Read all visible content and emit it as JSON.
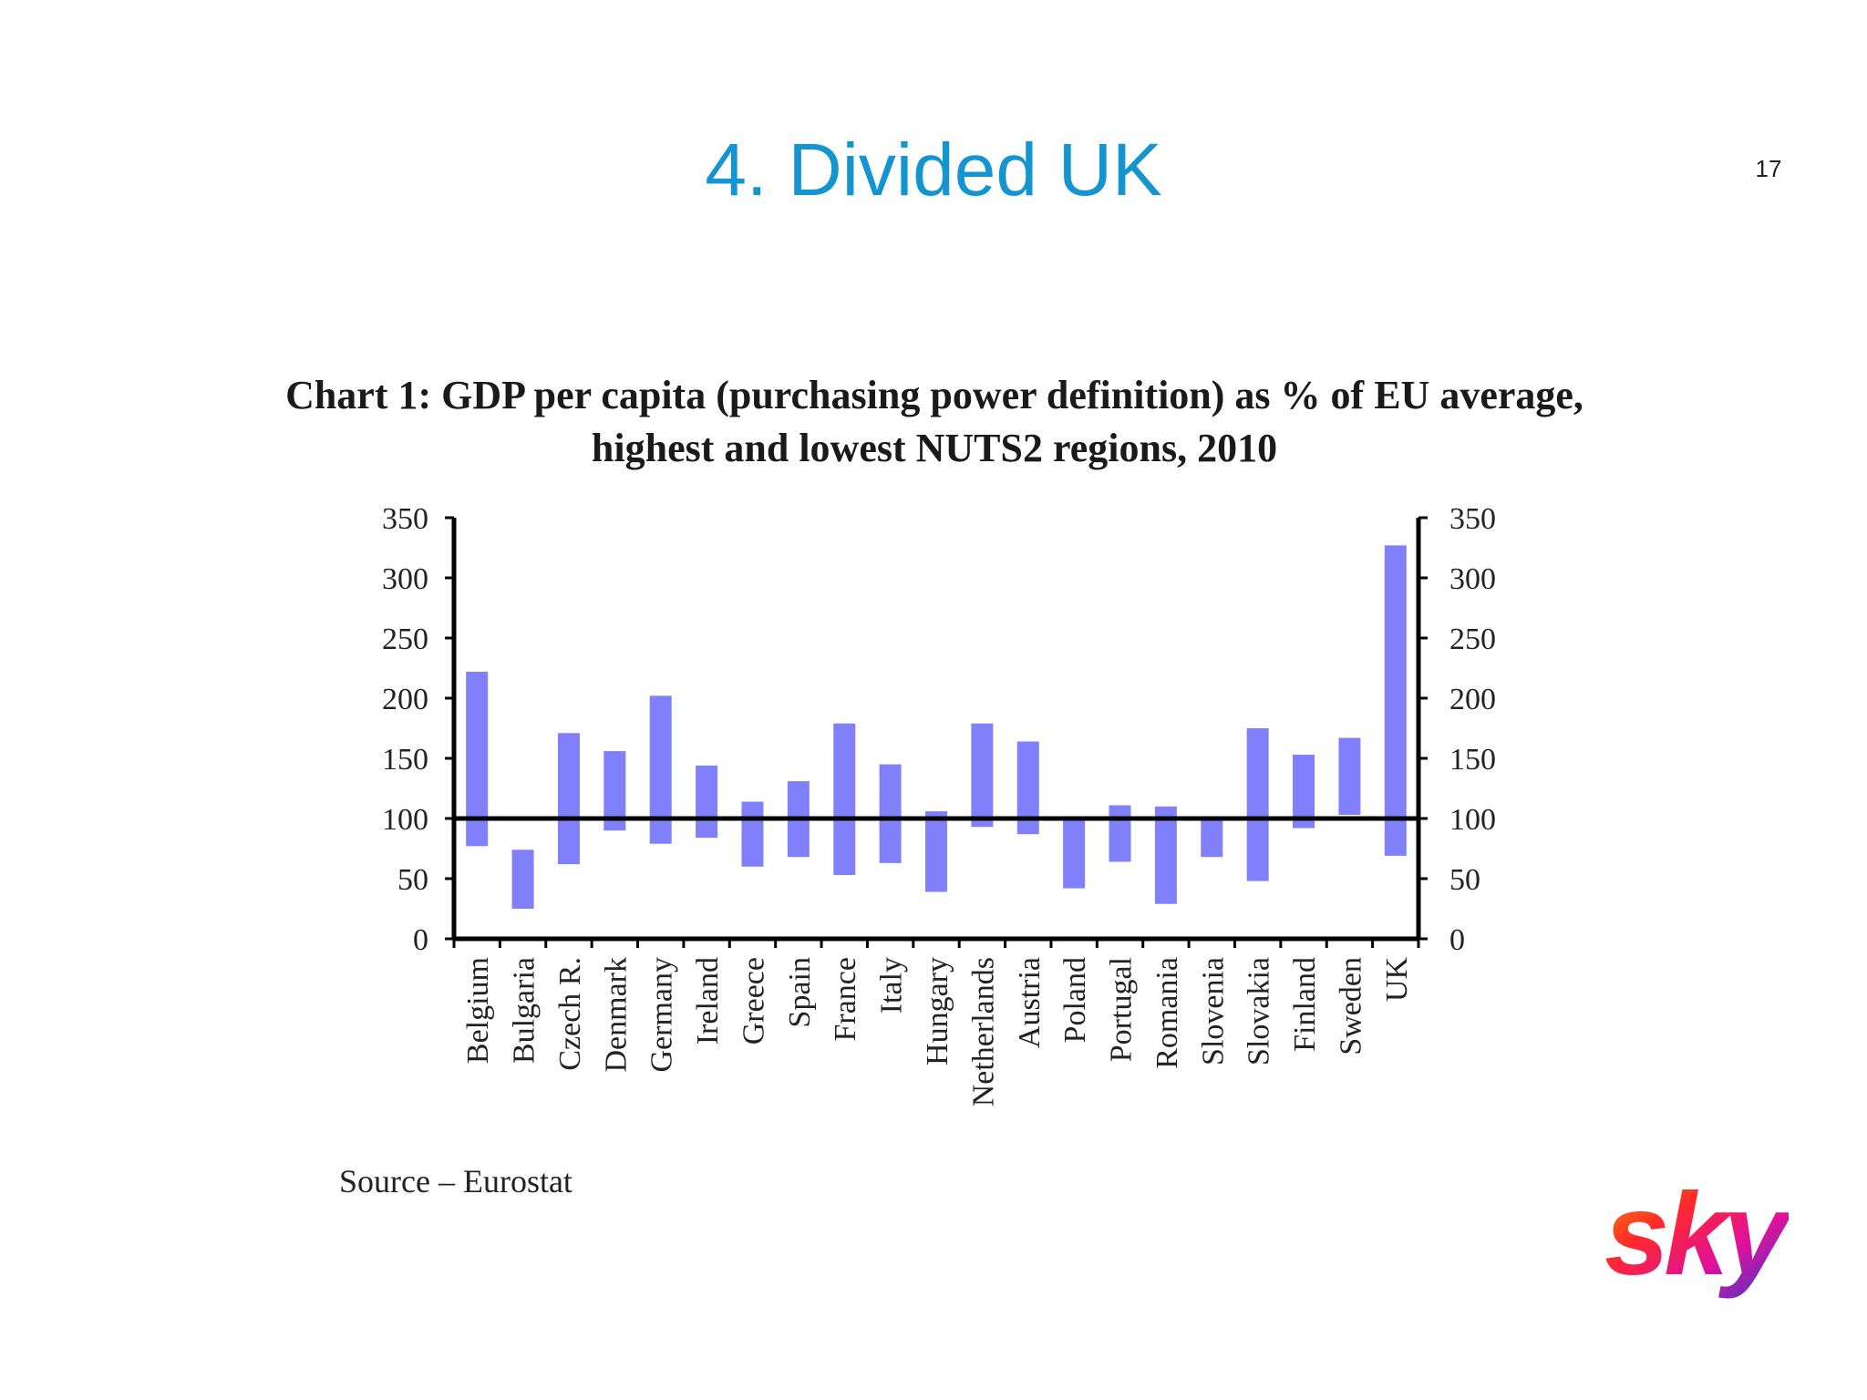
{
  "slide": {
    "title": "4. Divided UK",
    "page_number": "17",
    "source": "Source – Eurostat",
    "logo_text": "sky"
  },
  "colors": {
    "title": "#1495d0",
    "bar": "#8080fa",
    "axis": "#000000"
  },
  "chart_data": {
    "type": "bar",
    "subtype": "floating-range",
    "title": "Chart 1: GDP per capita (purchasing power definition) as % of EU average, highest and lowest NUTS2 regions, 2010",
    "xlabel": "",
    "ylabel": "",
    "ylim": [
      0,
      350
    ],
    "yticks": [
      0,
      50,
      100,
      150,
      200,
      250,
      300,
      350
    ],
    "secondary_yaxis": true,
    "reference_line": 100,
    "grid": false,
    "legend": "none",
    "categories": [
      "Belgium",
      "Bulgaria",
      "Czech R.",
      "Denmark",
      "Germany",
      "Ireland",
      "Greece",
      "Spain",
      "France",
      "Italy",
      "Hungary",
      "Netherlands",
      "Austria",
      "Poland",
      "Portugal",
      "Romania",
      "Slovenia",
      "Slovakia",
      "Finland",
      "Sweden",
      "UK"
    ],
    "series": [
      {
        "name": "lowest",
        "values": [
          77,
          25,
          62,
          90,
          79,
          84,
          60,
          68,
          53,
          63,
          39,
          93,
          87,
          42,
          64,
          29,
          68,
          48,
          92,
          103,
          69
        ]
      },
      {
        "name": "highest",
        "values": [
          222,
          74,
          171,
          156,
          202,
          144,
          114,
          131,
          179,
          145,
          106,
          179,
          164,
          99,
          111,
          110,
          99,
          175,
          153,
          167,
          327
        ]
      }
    ]
  }
}
